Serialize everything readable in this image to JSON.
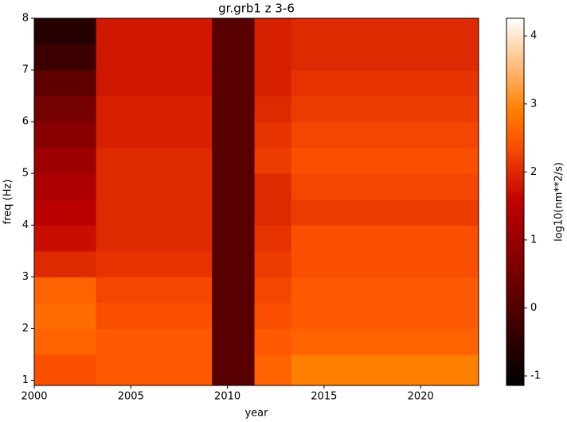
{
  "chart_data": {
    "type": "heatmap",
    "title": "gr.grb1 z 3-6",
    "x_label": "year",
    "y_label": "freq (Hz)",
    "colorbar_label": "log10(nm**2/s)",
    "colormap": "gist_heat",
    "x": [
      2000,
      2003.2,
      2009.2,
      2011.4,
      2013.3,
      2023
    ],
    "y": [
      0.9,
      1.5,
      2,
      2.5,
      3,
      3.5,
      4,
      4.5,
      5,
      5.5,
      6,
      6.5,
      7,
      7.5,
      8
    ],
    "values": [
      [
        2.4,
        2.5,
        0.1,
        2.6,
        2.9
      ],
      [
        2.6,
        2.5,
        0.1,
        2.5,
        2.6
      ],
      [
        2.7,
        2.4,
        0.1,
        2.4,
        2.5
      ],
      [
        2.6,
        2.3,
        0.1,
        2.3,
        2.5
      ],
      [
        2.0,
        2.1,
        0.1,
        2.2,
        2.4
      ],
      [
        1.7,
        2.0,
        0.1,
        2.1,
        2.4
      ],
      [
        1.5,
        2.0,
        0.1,
        2.0,
        2.2
      ],
      [
        1.3,
        2.0,
        0.1,
        2.0,
        2.3
      ],
      [
        1.1,
        2.0,
        0.1,
        2.2,
        2.4
      ],
      [
        0.8,
        1.9,
        0.1,
        2.1,
        2.3
      ],
      [
        0.5,
        1.9,
        0.1,
        2.0,
        2.2
      ],
      [
        0.2,
        1.8,
        0.1,
        1.9,
        2.1
      ],
      [
        -0.3,
        1.8,
        0.1,
        1.9,
        2.0
      ],
      [
        -0.6,
        1.8,
        0.1,
        1.9,
        2.0
      ]
    ],
    "xlim": [
      2000,
      2023
    ],
    "xticks": [
      2000,
      2005,
      2010,
      2015,
      2020
    ],
    "ylim": [
      0.9,
      8
    ],
    "yticks": [
      1,
      2,
      3,
      4,
      5,
      6,
      7,
      8
    ],
    "clim": [
      -1.14,
      4.26
    ],
    "cticks": [
      -1,
      0,
      1,
      2,
      3,
      4
    ]
  }
}
